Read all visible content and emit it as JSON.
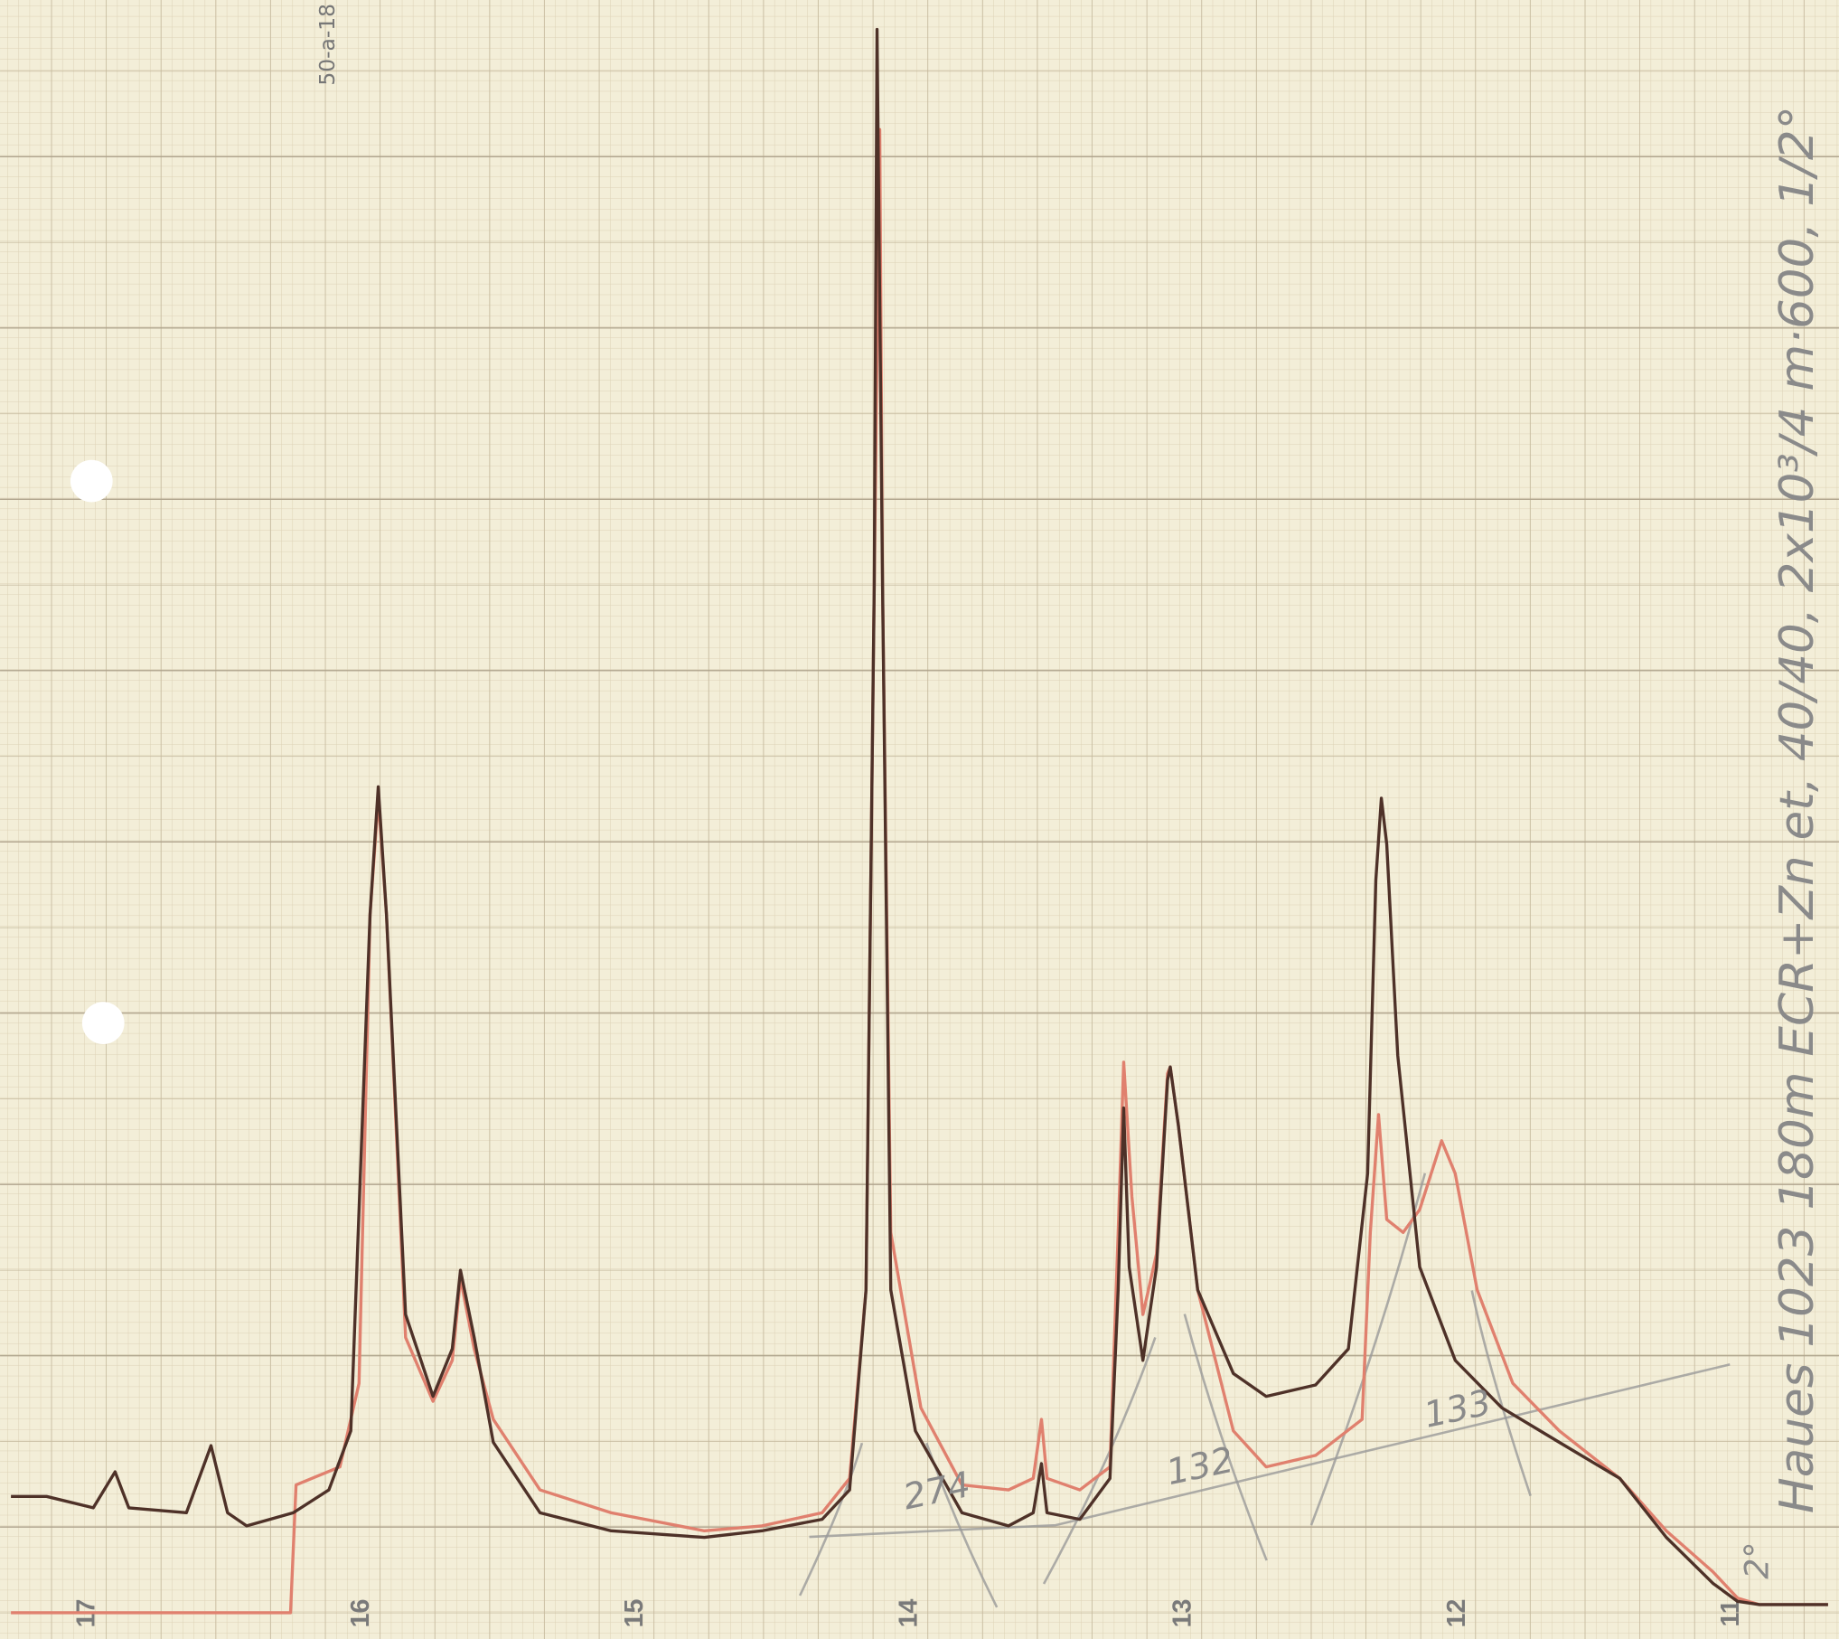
{
  "chart_data": {
    "type": "line",
    "code": "50-a-18",
    "margin_note": "Haues 1023   180m ECR+Zn et, 40/40, 2x10³/4 m·600, 1/2°",
    "corner_note": "2°",
    "annotations": [
      {
        "text": "274",
        "x": 13.9,
        "y": 8.9
      },
      {
        "text": "132",
        "x": 12.94,
        "y": 10.4
      },
      {
        "text": "133",
        "x": 12.0,
        "y": 13.9
      }
    ],
    "xlim": [
      17.32,
      10.61
    ],
    "xticks": [
      17,
      16,
      15,
      14,
      13,
      12,
      11
    ],
    "ylim": [
      0,
      100
    ],
    "series": [
      {
        "color": "#e0806e",
        "x": [
          17.28,
          16.26,
          16.24,
          16.08,
          16.01,
          15.97,
          15.94,
          15.91,
          15.84,
          15.74,
          15.67,
          15.64,
          15.59,
          15.52,
          15.35,
          15.09,
          14.75,
          14.54,
          14.32,
          14.22,
          14.16,
          14.13,
          14.11,
          14.1,
          14.07,
          13.96,
          13.81,
          13.64,
          13.55,
          13.52,
          13.5,
          13.38,
          13.27,
          13.24,
          13.22,
          13.19,
          13.15,
          13.1,
          13.06,
          13.05,
          13.02,
          12.95,
          12.82,
          12.7,
          12.52,
          12.35,
          12.32,
          12.29,
          12.26,
          12.2,
          12.14,
          12.06,
          12.01,
          11.93,
          11.8,
          11.63,
          11.41,
          11.24,
          11.07,
          10.98,
          10.9,
          10.65
        ],
        "values": [
          1.6,
          1.6,
          9.4,
          10.5,
          15.6,
          44.2,
          51.3,
          44.2,
          18.4,
          14.5,
          17.0,
          22.0,
          17.7,
          13.4,
          9.1,
          7.7,
          6.6,
          6.9,
          7.7,
          9.8,
          21.3,
          64.2,
          92.1,
          64.2,
          24.8,
          14.1,
          9.4,
          9.1,
          9.8,
          13.4,
          9.8,
          9.1,
          10.5,
          24.8,
          35.2,
          27.0,
          19.8,
          23.5,
          34.5,
          34.9,
          31.3,
          21.3,
          12.7,
          10.5,
          11.2,
          13.4,
          24.8,
          32.0,
          25.6,
          24.8,
          26.2,
          30.4,
          28.4,
          21.3,
          15.6,
          12.7,
          9.8,
          6.6,
          4.1,
          2.5,
          2.1,
          2.1
        ]
      },
      {
        "color": "#4e3128",
        "x": [
          17.28,
          17.15,
          16.98,
          16.9,
          16.85,
          16.64,
          16.55,
          16.49,
          16.42,
          16.25,
          16.12,
          16.04,
          15.97,
          15.94,
          15.91,
          15.84,
          15.74,
          15.67,
          15.64,
          15.59,
          15.52,
          15.35,
          15.09,
          14.75,
          14.54,
          14.32,
          14.22,
          14.16,
          14.13,
          14.12,
          14.1,
          14.07,
          13.98,
          13.81,
          13.64,
          13.55,
          13.52,
          13.5,
          13.38,
          13.27,
          13.24,
          13.22,
          13.2,
          13.15,
          13.1,
          13.06,
          13.05,
          13.02,
          12.95,
          12.82,
          12.7,
          12.52,
          12.4,
          12.33,
          12.3,
          12.28,
          12.26,
          12.22,
          12.14,
          12.01,
          11.84,
          11.63,
          11.41,
          11.24,
          11.07,
          10.98,
          10.9,
          10.65
        ],
        "values": [
          8.7,
          8.7,
          8.0,
          10.2,
          8.0,
          7.7,
          11.8,
          7.7,
          6.9,
          7.7,
          9.1,
          12.7,
          44.2,
          52.0,
          44.2,
          19.8,
          14.8,
          17.7,
          22.5,
          18.4,
          12.0,
          7.7,
          6.6,
          6.2,
          6.6,
          7.3,
          9.1,
          21.3,
          64.2,
          98.2,
          64.2,
          21.3,
          12.7,
          7.7,
          6.9,
          7.7,
          10.7,
          7.7,
          7.3,
          9.8,
          21.3,
          32.4,
          22.7,
          17.0,
          22.7,
          34.1,
          34.9,
          31.3,
          21.3,
          16.2,
          14.8,
          15.5,
          17.7,
          28.4,
          46.3,
          51.3,
          48.5,
          35.6,
          22.7,
          17.0,
          14.1,
          12.0,
          9.8,
          6.2,
          3.4,
          2.3,
          2.1,
          2.1
        ]
      }
    ]
  }
}
